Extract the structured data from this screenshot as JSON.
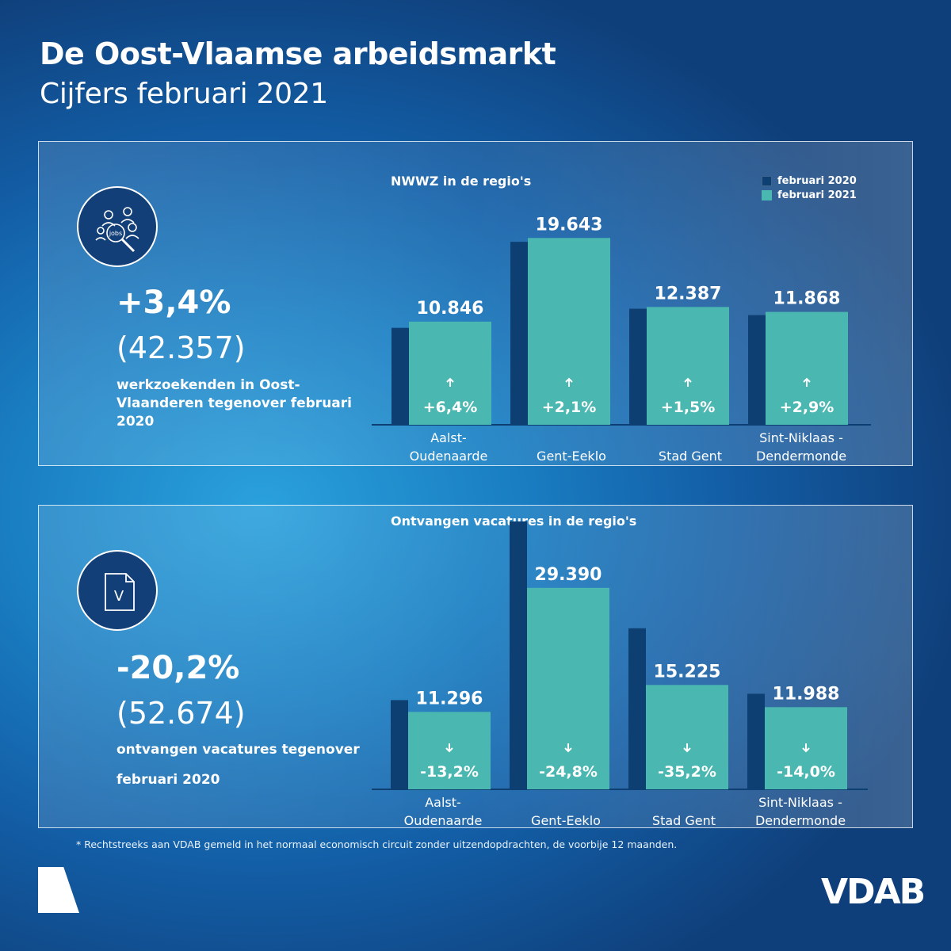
{
  "header": {
    "title": "De Oost-Vlaamse arbeidsmarkt",
    "subtitle": "Cijfers februari 2021"
  },
  "panel1": {
    "icon": "jobseekers-jobs-magnifier-icon",
    "icon_text": "jobs",
    "big_pct": "+3,4%",
    "big_num": "(42.357)",
    "desc": "werkzoekenden in Oost-Vlaanderen tegenover februari 2020",
    "chart_title": "NWWZ in de regio's"
  },
  "panel2": {
    "icon": "vacancy-document-icon",
    "icon_text": "V",
    "big_pct": "-20,2%",
    "big_num": "(52.674)",
    "desc_line1": "ontvangen vacatures tegenover",
    "desc_line2": "februari 2020",
    "chart_title": "Ontvangen vacatures in de regio's"
  },
  "legend": {
    "items": [
      {
        "label": "februari 2020",
        "color": "#0e3f72"
      },
      {
        "label": "februari 2021",
        "color": "#4ab7b0"
      }
    ]
  },
  "chart_data": [
    {
      "type": "bar",
      "title": "NWWZ in de regio's",
      "categories": [
        [
          "Aalst-",
          "Oudenaarde"
        ],
        [
          "Gent-Eeklo"
        ],
        [
          "Stad Gent"
        ],
        [
          "Sint-Niklaas -",
          "Dendermonde"
        ]
      ],
      "series": [
        {
          "name": "februari 2020",
          "color": "#0e3f72",
          "values": [
            10193,
            19238,
            12204,
            11533
          ]
        },
        {
          "name": "februari 2021",
          "color": "#4ab7b0",
          "values": [
            10846,
            19643,
            12387,
            11868
          ],
          "labels": [
            "10.846",
            "19.643",
            "12.387",
            "11.868"
          ]
        }
      ],
      "changes": [
        "+6,4%",
        "+2,1%",
        "+1,5%",
        "+2,9%"
      ],
      "change_direction": "up",
      "ylim": [
        0,
        20000
      ],
      "legend": "top-right"
    },
    {
      "type": "bar",
      "title": "Ontvangen vacatures in de regio's",
      "categories": [
        [
          "Aalst-",
          "Oudenaarde"
        ],
        [
          "Gent-Eeklo"
        ],
        [
          "Stad Gent"
        ],
        [
          "Sint-Niklaas -",
          "Dendermonde"
        ]
      ],
      "series": [
        {
          "name": "februari 2020",
          "color": "#0e3f72",
          "values": [
            13016,
            39083,
            23495,
            13940
          ]
        },
        {
          "name": "februari 2021",
          "color": "#4ab7b0",
          "values": [
            11296,
            29390,
            15225,
            11988
          ],
          "labels": [
            "11.296",
            "29.390",
            "15.225",
            "11.988"
          ]
        }
      ],
      "changes": [
        "-13,2%",
        "-24,8%",
        "-35,2%",
        "-14,0%"
      ],
      "change_direction": "down",
      "ylim": [
        0,
        40000
      ]
    }
  ],
  "footer": {
    "footnote": "* Rechtstreeks aan VDAB gemeld in het normaal economisch circuit zonder uitzendopdrachten, de voorbije 12 maanden.",
    "brand": "VDAB"
  }
}
